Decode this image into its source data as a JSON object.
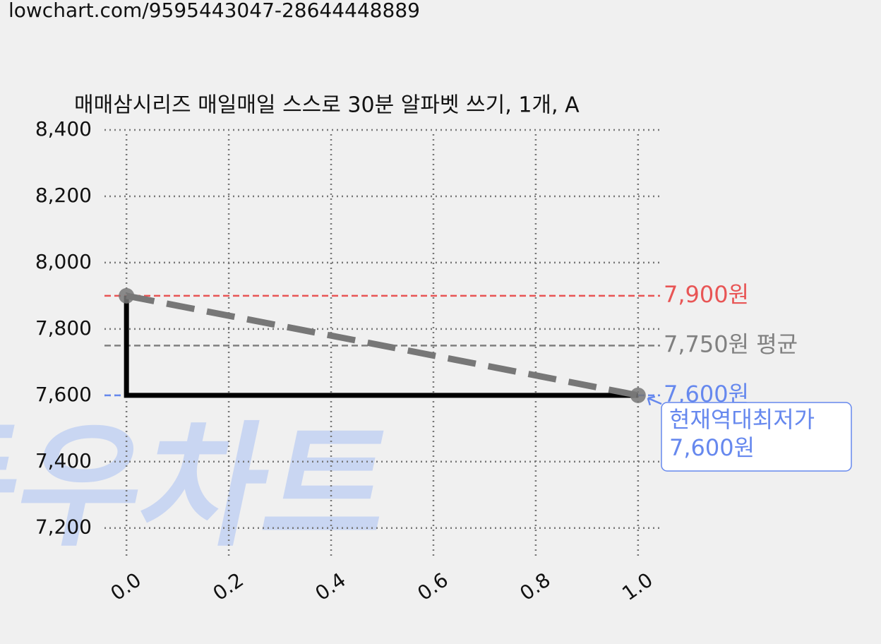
{
  "url": "lowchart.com/9595443047-28644448889",
  "chart_data": {
    "type": "line",
    "title": "매매삼시리즈 매일매일 스스로 30분 알파벳 쓰기, 1개, A",
    "watermark": "득우차트",
    "xlim": [
      -0.043,
      1.043
    ],
    "ylim": [
      7110,
      8400
    ],
    "xticks": [
      {
        "value": 0,
        "label": "0.0"
      },
      0.2,
      0.4,
      0.6,
      0.8,
      {
        "value": 1,
        "label": "1.0"
      }
    ],
    "yticks": [
      {
        "value": 7200,
        "label": "7,200"
      },
      {
        "value": 7400,
        "label": "7,400"
      },
      {
        "value": 7600,
        "label": "7,600"
      },
      {
        "value": 7800,
        "label": "7,800"
      },
      {
        "value": 8000,
        "label": "8,000"
      },
      {
        "value": 8200,
        "label": "8,200"
      },
      {
        "value": 8400,
        "label": "8,400"
      }
    ],
    "grid": true,
    "series": [
      {
        "color": "#000000",
        "style": "solid",
        "x": [
          0,
          0,
          1
        ],
        "values": [
          7900,
          7600,
          7600
        ]
      },
      {
        "color": "#777777",
        "style": "dashed",
        "markers": true,
        "x": [
          0,
          1
        ],
        "values": [
          7900,
          7600
        ]
      }
    ],
    "reference_lines": [
      {
        "value": 7900,
        "label": "7,900원",
        "color": "#e85555"
      },
      {
        "value": 7750,
        "label": "7,750원 평균",
        "color": "#808080"
      },
      {
        "value": 7600,
        "label": "7,600원",
        "color": "#6688ee"
      }
    ],
    "annotation": {
      "x": 1,
      "y": 7600,
      "lines": [
        "현재역대최저가",
        "7,600원"
      ],
      "color": "#6688ee"
    }
  }
}
